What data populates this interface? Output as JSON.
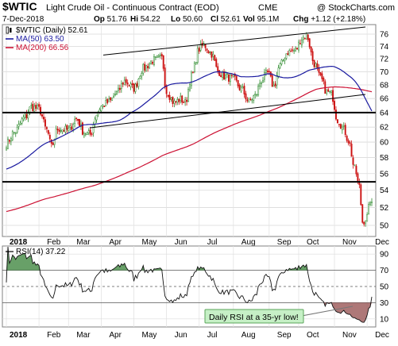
{
  "header": {
    "symbol": "$WTIC",
    "name": "Light Crude Oil - Continuous Contract (EOD)",
    "exchange": "CME",
    "watermark": "@ StockCharts.com",
    "date": "7-Dec-2018",
    "stats": [
      {
        "label": "Op",
        "value": "51.76"
      },
      {
        "label": "Hi",
        "value": "54.22"
      },
      {
        "label": "Lo",
        "value": "50.60"
      },
      {
        "label": "Cl",
        "value": "52.61"
      },
      {
        "label": "Vol",
        "value": "95.1M"
      },
      {
        "label": "Chg",
        "value": "+1.12 (+2.18%)"
      }
    ]
  },
  "legend": [
    {
      "label": "$WTIC (Daily) 52.61",
      "color": "#000000",
      "marker": "candle"
    },
    {
      "label": "MA(50) 63.50",
      "color": "#1a1aa0",
      "marker": "line"
    },
    {
      "label": "MA(200) 66.56",
      "color": "#cc1133",
      "marker": "line"
    }
  ],
  "rsi_legend": {
    "label": "RSI(14) 37.22"
  },
  "annotation": {
    "text": "Daily RSI at a 35-yr low!",
    "bg": "#c6f0c6",
    "border": "#5aa55a"
  },
  "colors": {
    "up": "#2e8b2e",
    "down": "#cc1111",
    "ma50": "#1a1aa0",
    "ma200": "#cc1133",
    "rsi_fill_high": "#4e8f4e",
    "rsi_fill_low": "#a06060"
  },
  "chart_data": [
    {
      "type": "candlestick",
      "title": "$WTIC Light Crude Oil - Continuous Contract (EOD)",
      "x_ticks": [
        "2018",
        "Feb",
        "Mar",
        "Apr",
        "May",
        "Jun",
        "Jul",
        "Aug",
        "Sep",
        "Oct",
        "Nov",
        "Dec"
      ],
      "y_ticks": [
        50,
        52,
        54,
        56,
        58,
        60,
        62,
        64,
        66,
        68,
        70,
        72,
        74,
        76
      ],
      "ylim": [
        48.8,
        77.6
      ],
      "y_scale": "log",
      "close_series_monthly_approx": [
        {
          "month": "Jan",
          "close": 64.5
        },
        {
          "month": "Feb",
          "close": 61.5
        },
        {
          "month": "Mar",
          "close": 64.9
        },
        {
          "month": "Apr",
          "close": 68.6
        },
        {
          "month": "May",
          "close": 67.0
        },
        {
          "month": "Jun",
          "close": 74.1
        },
        {
          "month": "Jul",
          "close": 68.8
        },
        {
          "month": "Aug",
          "close": 69.8
        },
        {
          "month": "Sep",
          "close": 73.2
        },
        {
          "month": "Oct",
          "close": 65.3
        },
        {
          "month": "Nov",
          "close": 50.9
        },
        {
          "month": "Dec",
          "close": 52.61
        }
      ],
      "series": [
        {
          "name": "$WTIC (Daily)",
          "last": 52.61
        },
        {
          "name": "MA(50)",
          "last": 63.5
        },
        {
          "name": "MA(200)",
          "last": 66.56
        }
      ],
      "horizontal_lines": [
        64.0,
        55.0
      ],
      "grid": true,
      "legend_position": "top-left"
    },
    {
      "type": "line",
      "title": "RSI(14)",
      "series": [
        {
          "name": "RSI(14)",
          "last": 37.22
        }
      ],
      "y_ticks": [
        10,
        30,
        50,
        70,
        90
      ],
      "ylim": [
        0,
        100
      ],
      "reference_lines": [
        30,
        50,
        70
      ],
      "x_ticks": [
        "2018",
        "Feb",
        "Mar",
        "Apr",
        "May",
        "Jun",
        "Jul",
        "Aug",
        "Sep",
        "Oct",
        "Nov",
        "Dec"
      ],
      "grid": true
    }
  ]
}
